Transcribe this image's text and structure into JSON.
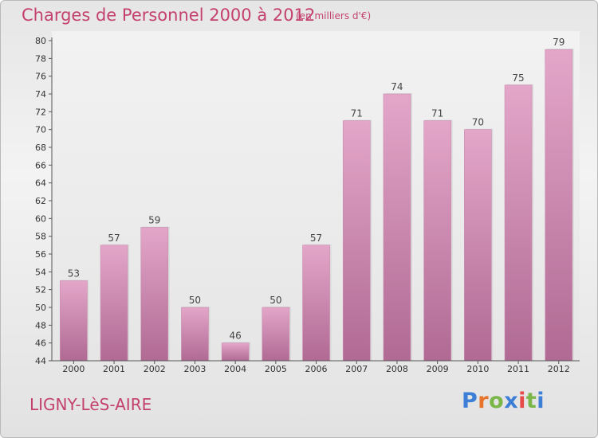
{
  "title": "Charges de Personnel 2000 à 2012",
  "subtitle": "(en milliers d'€)",
  "city": "LIGNY-LèS-AIRE",
  "brand": {
    "letters": [
      "P",
      "r",
      "o",
      "x",
      "i",
      "t",
      "i"
    ],
    "colors": [
      "#3d7fd6",
      "#e8732a",
      "#7ab648",
      "#3d7fd6",
      "#e84a4a",
      "#7ab648",
      "#3d7fd6"
    ]
  },
  "colors": {
    "bar_top": "#e3a6c9",
    "bar_bottom": "#b06a93",
    "accent": "#c4416f"
  },
  "chart_data": {
    "type": "bar",
    "categories": [
      "2000",
      "2001",
      "2002",
      "2003",
      "2004",
      "2005",
      "2006",
      "2007",
      "2008",
      "2009",
      "2010",
      "2011",
      "2012"
    ],
    "values": [
      53,
      57,
      59,
      50,
      46,
      50,
      57,
      71,
      74,
      71,
      70,
      75,
      79
    ],
    "data_labels": [
      "53",
      "57",
      "59",
      "50",
      "46",
      "50",
      "57",
      "71",
      "74",
      "71",
      "70",
      "75",
      "79"
    ],
    "ylim": [
      44,
      80
    ],
    "yticks": [
      "44",
      "46",
      "48",
      "50",
      "52",
      "54",
      "56",
      "58",
      "60",
      "62",
      "64",
      "66",
      "68",
      "70",
      "72",
      "74",
      "76",
      "78",
      "80"
    ],
    "grid": false
  }
}
